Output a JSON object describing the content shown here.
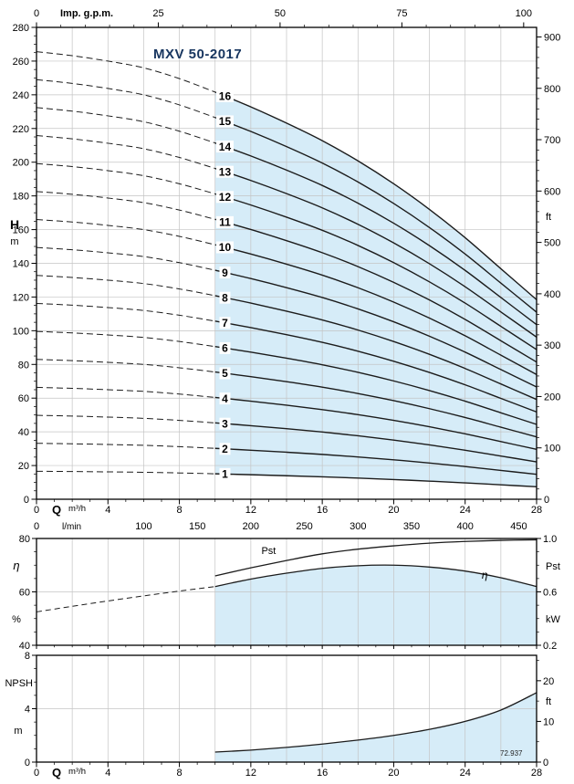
{
  "title": "MXV 50-2017",
  "doc_number": "72.937",
  "colors": {
    "accent_fill": "#d6ecf8",
    "curve": "#1c1c1c",
    "grid": "#c4c4c4",
    "frame": "#000000",
    "title_text": "#17355f",
    "text": "#000000"
  },
  "chart_data": [
    {
      "id": "head_capacity",
      "type": "line",
      "title": "MXV 50-2017",
      "x_axis_bottom": {
        "label": "Q",
        "unit": "m³/h",
        "min": 0,
        "max": 28,
        "minor_step": 1,
        "values": [
          0,
          4,
          8,
          12,
          16,
          20,
          24,
          28
        ],
        "labels": [
          "0",
          "4",
          "8",
          "12",
          "16",
          "20",
          "24",
          "28"
        ]
      },
      "x_axis_lmin": {
        "unit": "l/min",
        "factor_to_m3h": 0.06,
        "values": [
          0,
          100,
          150,
          200,
          250,
          300,
          350,
          400,
          450
        ],
        "labels": [
          "0",
          "100",
          "150",
          "200",
          "250",
          "300",
          "350",
          "400",
          "450"
        ]
      },
      "x_axis_top": {
        "label": "Imp. g.p.m.",
        "factor_to_m3h": 0.27276,
        "minor_step": 5,
        "values": [
          0,
          25,
          50,
          75,
          100
        ],
        "labels": [
          "0",
          "25",
          "50",
          "75",
          "100"
        ]
      },
      "y_axis_left": {
        "label": "H",
        "unit": "m",
        "min": 0,
        "max": 280,
        "minor_step": 5,
        "values": [
          0,
          20,
          40,
          60,
          80,
          100,
          120,
          140,
          160,
          180,
          200,
          220,
          240,
          260,
          280
        ],
        "labels": [
          "0",
          "20",
          "40",
          "60",
          "80",
          "100",
          "120",
          "140",
          "160",
          "180",
          "200",
          "220",
          "240",
          "260",
          "280"
        ]
      },
      "y_axis_right": {
        "unit": "ft",
        "factor_to_m": 0.3048,
        "minor_step": 20,
        "values": [
          0,
          100,
          200,
          300,
          400,
          500,
          600,
          700,
          800,
          900
        ],
        "labels": [
          "0",
          "100",
          "200",
          "300",
          "400",
          "500",
          "600",
          "700",
          "800",
          "900"
        ]
      },
      "stages": [
        1,
        2,
        3,
        4,
        5,
        6,
        7,
        8,
        9,
        10,
        11,
        12,
        13,
        14,
        15,
        16
      ],
      "q_points": [
        0,
        2,
        4,
        6,
        8,
        10,
        12,
        14,
        16,
        18,
        20,
        22,
        24,
        26,
        28
      ],
      "base_head_per_stage": [
        16.6,
        16.45,
        16.25,
        16.0,
        15.6,
        15.1,
        14.55,
        13.95,
        13.3,
        12.55,
        11.7,
        10.75,
        9.7,
        8.55,
        7.4
      ],
      "solid_from_q": 10,
      "label_q": 10.55
    },
    {
      "id": "efficiency_power",
      "type": "line",
      "y_axis_left": {
        "label": "η",
        "unit": "%",
        "min": 40,
        "max": 80,
        "minor_step": 5,
        "values": [
          40,
          60,
          80
        ],
        "labels": [
          "40",
          "60",
          "80"
        ]
      },
      "y_axis_right": {
        "label": "Pst",
        "unit": "kW",
        "min": 0.2,
        "max": 1.0,
        "minor_step": 0.1,
        "values": [
          0.2,
          0.6,
          1.0
        ],
        "labels": [
          "0.2",
          "0.6",
          "1.0"
        ]
      },
      "series": [
        {
          "name": "eta_dashed",
          "style": "dashed",
          "axis": "left",
          "fill": false,
          "q": [
            0,
            2,
            4,
            6,
            8,
            10
          ],
          "v": [
            52.5,
            54.6,
            56.6,
            58.5,
            60.3,
            62
          ]
        },
        {
          "name": "eta",
          "label": "η",
          "style": "solid",
          "axis": "left",
          "fill": true,
          "q": [
            10,
            12,
            14,
            16,
            18,
            20,
            22,
            24,
            26,
            28
          ],
          "v": [
            62,
            64.8,
            67,
            68.8,
            69.8,
            70,
            69.3,
            67.8,
            65.3,
            62
          ]
        },
        {
          "name": "pst",
          "label": "Pst",
          "style": "solid",
          "axis": "right",
          "fill": false,
          "q": [
            10,
            12,
            14,
            16,
            18,
            20,
            22,
            24,
            26,
            28
          ],
          "v": [
            0.72,
            0.78,
            0.835,
            0.885,
            0.92,
            0.945,
            0.965,
            0.978,
            0.986,
            0.99
          ]
        }
      ]
    },
    {
      "id": "npsh",
      "type": "line",
      "y_axis_left": {
        "label": "NPSH",
        "unit": "m",
        "min": 0,
        "max": 8,
        "minor_step": 1,
        "values": [
          0,
          4,
          8
        ],
        "labels": [
          "0",
          "4",
          "8"
        ]
      },
      "y_axis_right": {
        "unit": "ft",
        "factor_to_m": 0.3048,
        "minor_step": 5,
        "values": [
          0,
          10,
          20
        ],
        "labels": [
          "0",
          "10",
          "20"
        ]
      },
      "series": [
        {
          "name": "npsh",
          "style": "solid",
          "axis": "left",
          "fill": true,
          "q": [
            10,
            12,
            14,
            16,
            18,
            20,
            22,
            24,
            26,
            28
          ],
          "v": [
            0.75,
            0.9,
            1.1,
            1.35,
            1.65,
            2.0,
            2.45,
            3.05,
            3.9,
            5.2
          ]
        }
      ],
      "x_axis_bottom": {
        "label": "Q",
        "unit": "m³/h",
        "minor_step": 1,
        "values": [
          0,
          4,
          8,
          12,
          16,
          20,
          24,
          28
        ],
        "labels": [
          "0",
          "4",
          "8",
          "12",
          "16",
          "20",
          "24",
          "28"
        ]
      }
    }
  ]
}
